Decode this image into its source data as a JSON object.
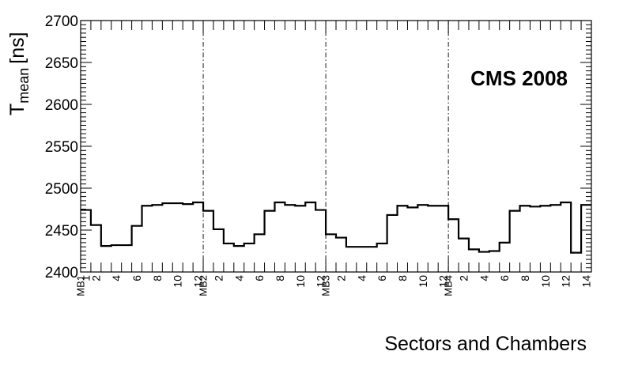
{
  "chart_data": {
    "type": "line",
    "style": "step-histogram",
    "annotation": "CMS 2008",
    "xlabel": "Sectors and Chambers",
    "ylabel_main": "T",
    "ylabel_sub": "mean",
    "ylabel_unit": "[ns]",
    "ylim": [
      2400,
      2700
    ],
    "yticks": [
      2400,
      2450,
      2500,
      2550,
      2600,
      2650,
      2700
    ],
    "xlim": [
      0,
      50
    ],
    "grid": false,
    "legend": "none",
    "line_color": "#000000",
    "divider_positions": [
      12,
      24,
      36
    ],
    "station_labels": [
      "MB1",
      "MB2",
      "MB3",
      "MB4"
    ],
    "sector_tick_labels": [
      [
        "1",
        "2",
        "4",
        "6",
        "8",
        "10",
        "12"
      ],
      [
        "2",
        "4",
        "6",
        "8",
        "10",
        "12"
      ],
      [
        "2",
        "4",
        "6",
        "8",
        "10",
        "12"
      ],
      [
        "2",
        "4",
        "6",
        "8",
        "10",
        "12",
        "14"
      ]
    ],
    "series": [
      {
        "values": [
          2474,
          2456,
          2431,
          2432,
          2432,
          2455,
          2479,
          2480,
          2482,
          2482,
          2481,
          2483,
          2473,
          2451,
          2434,
          2431,
          2434,
          2445,
          2473,
          2483,
          2480,
          2479,
          2483,
          2474,
          2445,
          2441,
          2430,
          2430,
          2430,
          2434,
          2468,
          2479,
          2477,
          2480,
          2479,
          2479,
          2463,
          2440,
          2427,
          2424,
          2425,
          2435,
          2473,
          2479,
          2478,
          2479,
          2480,
          2483,
          2423,
          2480
        ]
      }
    ]
  }
}
